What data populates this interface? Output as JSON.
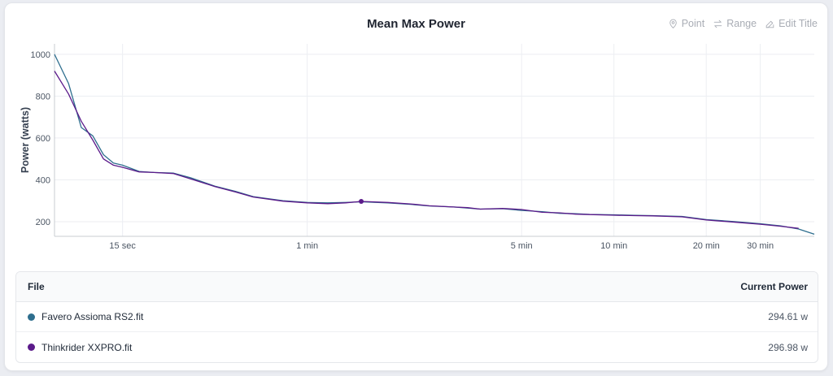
{
  "colors": {
    "favero": "#2e6e8e",
    "thinkrider": "#5b1a8a",
    "grid": "#eceef2",
    "axis": "#c8ccd2"
  },
  "toolbar": {
    "point_label": "Point",
    "range_label": "Range",
    "edit_title_label": "Edit Title",
    "point_icon": "map-pin-icon",
    "range_icon": "arrows-exchange-icon",
    "edit_icon": "edit-pencil-icon"
  },
  "table": {
    "header_file": "File",
    "header_power": "Current Power",
    "rows": [
      {
        "file": "Favero Assioma RS2.fit",
        "power": "294.61 w",
        "color": "#2e6e8e"
      },
      {
        "file": "Thinkrider XXPRO.fit",
        "power": "296.98 w",
        "color": "#5b1a8a"
      }
    ]
  },
  "chart_data": {
    "type": "line",
    "title": "Mean Max Power",
    "ylabel": "Power (watts)",
    "xlabel": "",
    "x_scale": "log",
    "x_unit": "seconds",
    "xlim": [
      9,
      2700
    ],
    "ylim": [
      130,
      1050
    ],
    "yticks": [
      200,
      400,
      600,
      800,
      1000
    ],
    "xticks": [
      {
        "value": 15,
        "label": "15 sec"
      },
      {
        "value": 60,
        "label": "1 min"
      },
      {
        "value": 300,
        "label": "5 min"
      },
      {
        "value": 600,
        "label": "10 min"
      },
      {
        "value": 1200,
        "label": "20 min"
      },
      {
        "value": 1800,
        "label": "30 min"
      }
    ],
    "grid": true,
    "cursor": {
      "x": 90,
      "y": 296.98
    },
    "series": [
      {
        "name": "Favero Assioma RS2.fit",
        "color": "#2e6e8e",
        "x": [
          9,
          10,
          11,
          12,
          13,
          14,
          15,
          17,
          19,
          22,
          25,
          30,
          35,
          40,
          50,
          60,
          70,
          80,
          90,
          110,
          130,
          150,
          180,
          200,
          220,
          260,
          300,
          350,
          400,
          450,
          500,
          600,
          700,
          800,
          1000,
          1200,
          1500,
          1800,
          2100,
          2400,
          2700
        ],
        "y": [
          1000,
          860,
          650,
          610,
          520,
          480,
          470,
          440,
          435,
          432,
          410,
          370,
          345,
          320,
          300,
          292,
          290,
          292,
          295,
          290,
          283,
          275,
          270,
          265,
          260,
          262,
          254,
          248,
          240,
          238,
          235,
          233,
          230,
          229,
          225,
          210,
          200,
          190,
          180,
          165,
          140
        ]
      },
      {
        "name": "Thinkrider XXPRO.fit",
        "color": "#5b1a8a",
        "x": [
          9,
          10,
          11,
          12,
          13,
          14,
          15,
          17,
          19,
          22,
          25,
          30,
          35,
          40,
          50,
          60,
          70,
          80,
          90,
          110,
          130,
          150,
          180,
          200,
          220,
          260,
          300,
          350,
          400,
          450,
          500,
          600,
          700,
          800,
          1000,
          1200,
          1500,
          1800,
          2100,
          2400
        ],
        "y": [
          920,
          810,
          680,
          590,
          500,
          470,
          460,
          438,
          435,
          430,
          405,
          368,
          342,
          318,
          298,
          290,
          286,
          290,
          297,
          292,
          285,
          276,
          270,
          267,
          260,
          263,
          258,
          245,
          242,
          236,
          234,
          231,
          229,
          228,
          223,
          208,
          197,
          188,
          178,
          168
        ]
      }
    ]
  }
}
